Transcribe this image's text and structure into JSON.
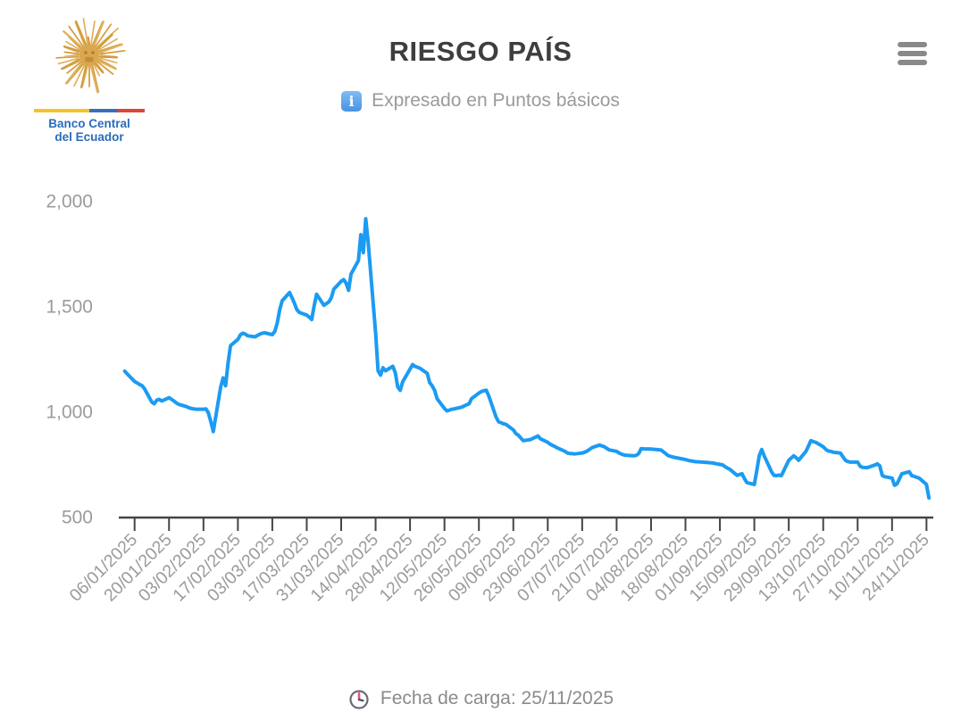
{
  "header": {
    "title": "RIESGO PAÍS",
    "subtitle": "Expresado en Puntos básicos",
    "info_icon_glyph": "i"
  },
  "logo": {
    "line1": "Banco Central",
    "line2": "del Ecuador"
  },
  "footer": {
    "load_date_text": "Fecha de carga: 25/11/2025"
  },
  "colors": {
    "line": "#1c9bf2",
    "title": "#3e3e3e",
    "subtitle": "#9a9a9a",
    "axis": "#454545",
    "axis_labels": "#9b9b9b",
    "menu_icon": "#898989",
    "logo_text": "#2a6cb9",
    "flag_yellow": "#f2c42a",
    "flag_blue": "#3a6fb7",
    "flag_red": "#e04438",
    "sun_gold": "#d9a84e",
    "info_icon_bg": "#4a92e2",
    "clock_ring": "#6b6b75",
    "clock_hand_pink": "#e6547c",
    "clock_hand_dark": "#4b4b52"
  },
  "chart_data": {
    "type": "line",
    "title": "RIESGO PAÍS",
    "subtitle": "Expresado en Puntos básicos",
    "unit": "puntos básicos",
    "grid": false,
    "legend": false,
    "year": "2025",
    "ylim": [
      500,
      2000
    ],
    "y_ticks": [
      {
        "value": 500,
        "label": "500"
      },
      {
        "value": 1000,
        "label": "1,000"
      },
      {
        "value": 1500,
        "label": "1,500"
      },
      {
        "value": 2000,
        "label": "2,000"
      }
    ],
    "x_ticks": [
      "06/01/2025",
      "20/01/2025",
      "03/02/2025",
      "17/02/2025",
      "03/03/2025",
      "17/03/2025",
      "31/03/2025",
      "14/04/2025",
      "28/04/2025",
      "12/05/2025",
      "26/05/2025",
      "09/06/2025",
      "23/06/2025",
      "07/07/2025",
      "21/07/2025",
      "04/08/2025",
      "18/08/2025",
      "01/09/2025",
      "15/09/2025",
      "29/09/2025",
      "13/10/2025",
      "27/10/2025",
      "10/11/2025",
      "24/11/2025"
    ],
    "series": [
      {
        "name": "Riesgo País",
        "color": "#1c9bf2",
        "points": [
          [
            "02/01",
            1191
          ],
          [
            "03/01",
            1178
          ],
          [
            "06/01",
            1142
          ],
          [
            "07/01",
            1135
          ],
          [
            "08/01",
            1128
          ],
          [
            "09/01",
            1122
          ],
          [
            "10/01",
            1108
          ],
          [
            "13/01",
            1044
          ],
          [
            "14/01",
            1036
          ],
          [
            "15/01",
            1053
          ],
          [
            "16/01",
            1057
          ],
          [
            "17/01",
            1049
          ],
          [
            "20/01",
            1065
          ],
          [
            "21/01",
            1057
          ],
          [
            "22/01",
            1049
          ],
          [
            "23/01",
            1040
          ],
          [
            "24/01",
            1033
          ],
          [
            "27/01",
            1023
          ],
          [
            "28/01",
            1018
          ],
          [
            "29/01",
            1014
          ],
          [
            "30/01",
            1012
          ],
          [
            "31/01",
            1010
          ],
          [
            "03/02",
            1010
          ],
          [
            "04/02",
            1012
          ],
          [
            "05/02",
            993
          ],
          [
            "06/02",
            951
          ],
          [
            "07/02",
            904
          ],
          [
            "10/02",
            1116
          ],
          [
            "11/02",
            1159
          ],
          [
            "12/02",
            1121
          ],
          [
            "13/02",
            1228
          ],
          [
            "14/02",
            1312
          ],
          [
            "17/02",
            1342
          ],
          [
            "18/02",
            1363
          ],
          [
            "19/02",
            1371
          ],
          [
            "20/02",
            1367
          ],
          [
            "21/02",
            1359
          ],
          [
            "24/02",
            1354
          ],
          [
            "25/02",
            1361
          ],
          [
            "26/02",
            1367
          ],
          [
            "27/02",
            1371
          ],
          [
            "28/02",
            1373
          ],
          [
            "03/03",
            1364
          ],
          [
            "04/03",
            1380
          ],
          [
            "05/03",
            1419
          ],
          [
            "06/03",
            1483
          ],
          [
            "07/03",
            1525
          ],
          [
            "10/03",
            1564
          ],
          [
            "11/03",
            1540
          ],
          [
            "12/03",
            1513
          ],
          [
            "13/03",
            1483
          ],
          [
            "14/03",
            1470
          ],
          [
            "17/03",
            1457
          ],
          [
            "18/03",
            1448
          ],
          [
            "19/03",
            1436
          ],
          [
            "20/03",
            1500
          ],
          [
            "21/03",
            1556
          ],
          [
            "24/03",
            1504
          ],
          [
            "25/03",
            1512
          ],
          [
            "26/03",
            1520
          ],
          [
            "27/03",
            1540
          ],
          [
            "28/03",
            1580
          ],
          [
            "31/03",
            1618
          ],
          [
            "01/04",
            1626
          ],
          [
            "02/04",
            1609
          ],
          [
            "03/04",
            1575
          ],
          [
            "04/04",
            1652
          ],
          [
            "07/04",
            1716
          ],
          [
            "08/04",
            1839
          ],
          [
            "09/04",
            1754
          ],
          [
            "10/04",
            1915
          ],
          [
            "11/04",
            1800
          ],
          [
            "14/04",
            1371
          ],
          [
            "15/04",
            1193
          ],
          [
            "16/04",
            1172
          ],
          [
            "17/04",
            1207
          ],
          [
            "18/04",
            1193
          ],
          [
            "21/04",
            1214
          ],
          [
            "22/04",
            1184
          ],
          [
            "23/04",
            1116
          ],
          [
            "24/04",
            1100
          ],
          [
            "25/04",
            1140
          ],
          [
            "28/04",
            1201
          ],
          [
            "29/04",
            1222
          ],
          [
            "30/04",
            1214
          ],
          [
            "02/05",
            1205
          ],
          [
            "05/05",
            1180
          ],
          [
            "06/05",
            1137
          ],
          [
            "07/05",
            1121
          ],
          [
            "08/05",
            1100
          ],
          [
            "09/05",
            1060
          ],
          [
            "12/05",
            1014
          ],
          [
            "13/05",
            1002
          ],
          [
            "14/05",
            1006
          ],
          [
            "15/05",
            1010
          ],
          [
            "16/05",
            1012
          ],
          [
            "19/05",
            1020
          ],
          [
            "20/05",
            1026
          ],
          [
            "21/05",
            1031
          ],
          [
            "22/05",
            1036
          ],
          [
            "23/05",
            1060
          ],
          [
            "26/05",
            1087
          ],
          [
            "27/05",
            1094
          ],
          [
            "28/05",
            1098
          ],
          [
            "29/05",
            1100
          ],
          [
            "30/05",
            1074
          ],
          [
            "02/06",
            972
          ],
          [
            "03/06",
            951
          ],
          [
            "04/06",
            946
          ],
          [
            "05/06",
            941
          ],
          [
            "06/06",
            938
          ],
          [
            "09/06",
            912
          ],
          [
            "10/06",
            895
          ],
          [
            "11/06",
            887
          ],
          [
            "12/06",
            874
          ],
          [
            "13/06",
            861
          ],
          [
            "16/06",
            866
          ],
          [
            "17/06",
            872
          ],
          [
            "18/06",
            877
          ],
          [
            "19/06",
            883
          ],
          [
            "20/06",
            870
          ],
          [
            "23/06",
            853
          ],
          [
            "24/06",
            844
          ],
          [
            "25/06",
            838
          ],
          [
            "26/06",
            832
          ],
          [
            "27/06",
            826
          ],
          [
            "30/06",
            810
          ],
          [
            "01/07",
            802
          ],
          [
            "02/07",
            800
          ],
          [
            "03/07",
            799
          ],
          [
            "04/07",
            798
          ],
          [
            "07/07",
            802
          ],
          [
            "08/07",
            806
          ],
          [
            "09/07",
            812
          ],
          [
            "10/07",
            819
          ],
          [
            "11/07",
            828
          ],
          [
            "14/07",
            840
          ],
          [
            "15/07",
            836
          ],
          [
            "16/07",
            832
          ],
          [
            "17/07",
            824
          ],
          [
            "18/07",
            817
          ],
          [
            "21/07",
            810
          ],
          [
            "22/07",
            802
          ],
          [
            "23/07",
            797
          ],
          [
            "24/07",
            793
          ],
          [
            "25/07",
            791
          ],
          [
            "28/07",
            789
          ],
          [
            "29/07",
            791
          ],
          [
            "30/07",
            800
          ],
          [
            "31/07",
            823
          ],
          [
            "01/08",
            822
          ],
          [
            "04/08",
            821
          ],
          [
            "05/08",
            820
          ],
          [
            "06/08",
            819
          ],
          [
            "07/08",
            818
          ],
          [
            "08/08",
            817
          ],
          [
            "11/08",
            790
          ],
          [
            "12/08",
            786
          ],
          [
            "13/08",
            783
          ],
          [
            "14/08",
            780
          ],
          [
            "15/08",
            778
          ],
          [
            "18/08",
            771
          ],
          [
            "19/08",
            768
          ],
          [
            "20/08",
            765
          ],
          [
            "21/08",
            763
          ],
          [
            "22/08",
            761
          ],
          [
            "25/08",
            759
          ],
          [
            "26/08",
            758
          ],
          [
            "27/08",
            757
          ],
          [
            "28/08",
            756
          ],
          [
            "29/08",
            755
          ],
          [
            "01/09",
            748
          ],
          [
            "02/09",
            746
          ],
          [
            "03/09",
            738
          ],
          [
            "04/09",
            731
          ],
          [
            "05/09",
            725
          ],
          [
            "08/09",
            696
          ],
          [
            "09/09",
            700
          ],
          [
            "10/09",
            704
          ],
          [
            "11/09",
            680
          ],
          [
            "12/09",
            662
          ],
          [
            "15/09",
            653
          ],
          [
            "16/09",
            720
          ],
          [
            "17/09",
            789
          ],
          [
            "18/09",
            819
          ],
          [
            "19/09",
            789
          ],
          [
            "22/09",
            713
          ],
          [
            "23/09",
            696
          ],
          [
            "24/09",
            695
          ],
          [
            "25/09",
            697
          ],
          [
            "26/09",
            695
          ],
          [
            "29/09",
            768
          ],
          [
            "30/09",
            778
          ],
          [
            "01/10",
            789
          ],
          [
            "02/10",
            780
          ],
          [
            "03/10",
            768
          ],
          [
            "06/10",
            810
          ],
          [
            "07/10",
            835
          ],
          [
            "08/10",
            861
          ],
          [
            "09/10",
            856
          ],
          [
            "10/10",
            853
          ],
          [
            "13/10",
            832
          ],
          [
            "14/10",
            820
          ],
          [
            "15/10",
            812
          ],
          [
            "16/10",
            810
          ],
          [
            "17/10",
            806
          ],
          [
            "20/10",
            802
          ],
          [
            "21/10",
            785
          ],
          [
            "22/10",
            768
          ],
          [
            "23/10",
            762
          ],
          [
            "24/10",
            759
          ],
          [
            "27/10",
            759
          ],
          [
            "28/10",
            740
          ],
          [
            "29/10",
            734
          ],
          [
            "30/10",
            733
          ],
          [
            "31/10",
            733
          ],
          [
            "03/11",
            745
          ],
          [
            "04/11",
            751
          ],
          [
            "05/11",
            742
          ],
          [
            "06/11",
            696
          ],
          [
            "07/11",
            690
          ],
          [
            "10/11",
            683
          ],
          [
            "11/11",
            649
          ],
          [
            "12/11",
            655
          ],
          [
            "13/11",
            680
          ],
          [
            "14/11",
            704
          ],
          [
            "17/11",
            713
          ],
          [
            "18/11",
            695
          ],
          [
            "19/11",
            691
          ],
          [
            "20/11",
            687
          ],
          [
            "21/11",
            683
          ],
          [
            "24/11",
            653
          ],
          [
            "25/11",
            589
          ]
        ]
      }
    ]
  }
}
